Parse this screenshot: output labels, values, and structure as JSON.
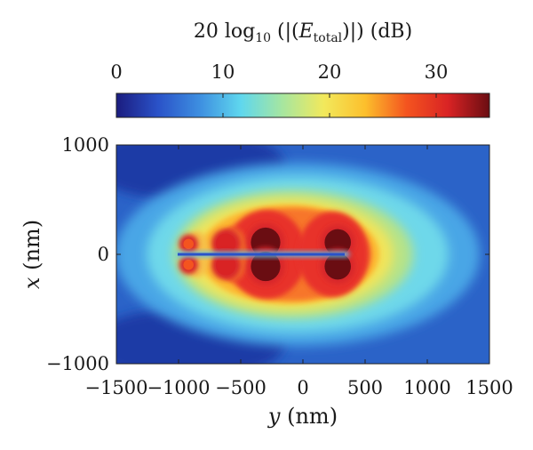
{
  "chart_data": {
    "type": "heatmap",
    "colorbar": {
      "title_prefix": "20 log",
      "title_log_sub": "10",
      "title_open": " (|(",
      "title_var": "E",
      "title_var_sub": "total",
      "title_close": ")|) (dB)",
      "ticks": [
        "0",
        "10",
        "20",
        "30"
      ],
      "tick_values": [
        0,
        10,
        20,
        30
      ],
      "range": [
        0,
        35
      ],
      "colormap": [
        "#1b1c7f",
        "#2a52c8",
        "#3d8ee0",
        "#5fd7ee",
        "#a6e6a0",
        "#f2e95c",
        "#fcbf2c",
        "#f4541f",
        "#d92324",
        "#6a0d12"
      ]
    },
    "xlabel_var": "y",
    "xlabel_unit": " (nm)",
    "ylabel_var": "x",
    "ylabel_unit": " (nm)",
    "xlim": [
      -1500,
      1500
    ],
    "ylim": [
      -1000,
      1000
    ],
    "xticks": [
      "−1500",
      "−1000",
      "−500",
      "0",
      "500",
      "1000",
      "1500"
    ],
    "xtick_values": [
      -1500,
      -1000,
      -500,
      0,
      500,
      1000,
      1500
    ],
    "yticks": [
      "1000",
      "0",
      "−1000"
    ],
    "ytick_values": [
      1000,
      0,
      -1000
    ],
    "hotspots": [
      {
        "y": -300,
        "x": 110,
        "db": 35
      },
      {
        "y": -300,
        "x": -110,
        "db": 35
      },
      {
        "y": 280,
        "x": 110,
        "db": 34
      },
      {
        "y": 280,
        "x": -110,
        "db": 34
      },
      {
        "y": -620,
        "x": 100,
        "db": 32
      },
      {
        "y": -620,
        "x": -100,
        "db": 32
      },
      {
        "y": -920,
        "x": 95,
        "db": 29
      },
      {
        "y": -920,
        "x": -95,
        "db": 29
      }
    ]
  }
}
